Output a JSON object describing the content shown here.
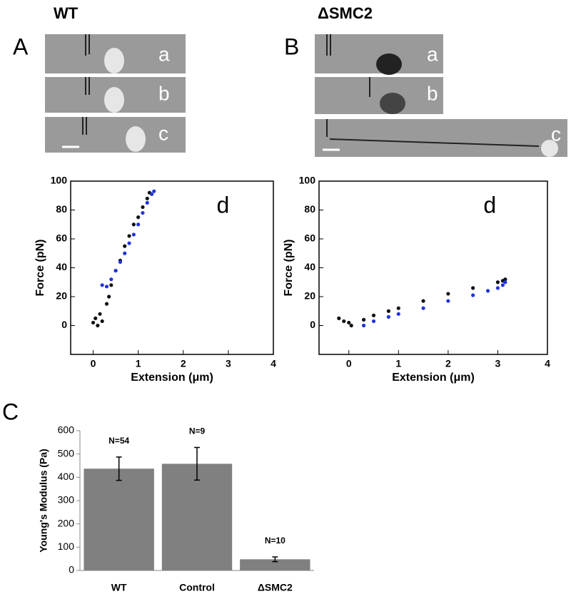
{
  "panels": {
    "left_title": "WT",
    "right_title": "ΔSMC2",
    "letters": [
      "A",
      "B",
      "C"
    ],
    "left_images": [
      "a",
      "b",
      "c"
    ],
    "right_images": [
      "a",
      "b",
      "c"
    ]
  },
  "chart_data": [
    {
      "type": "scatter",
      "annotation": "d",
      "xlabel": "Extension (μm)",
      "ylabel": "Force (pN)",
      "xlim": [
        -0.5,
        4
      ],
      "xticks": [
        0,
        1,
        2,
        3,
        4
      ],
      "ylim": [
        -20,
        100
      ],
      "yticks": [
        0,
        20,
        40,
        60,
        80,
        100
      ],
      "series": [
        {
          "color": "#111111",
          "x": [
            0,
            0.05,
            0.1,
            0.15,
            0.2,
            0.3,
            0.35,
            0.4,
            0.5,
            0.6,
            0.7,
            0.8,
            0.9,
            1.0,
            1.1,
            1.2,
            1.25
          ],
          "values": [
            2,
            5,
            0,
            8,
            3,
            15,
            20,
            28,
            38,
            45,
            55,
            62,
            70,
            75,
            82,
            88,
            92
          ]
        },
        {
          "color": "#2233dd",
          "x": [
            0.2,
            0.3,
            0.4,
            0.5,
            0.6,
            0.7,
            0.8,
            0.9,
            1.0,
            1.1,
            1.2,
            1.3,
            1.35
          ],
          "values": [
            28,
            27,
            32,
            38,
            44,
            50,
            57,
            63,
            70,
            78,
            85,
            91,
            93
          ]
        }
      ]
    },
    {
      "type": "scatter",
      "annotation": "d",
      "xlabel": "Extension (μm)",
      "ylabel": "Force (pN)",
      "xlim": [
        -0.6,
        4
      ],
      "xticks": [
        0,
        1,
        2,
        3,
        4
      ],
      "ylim": [
        -20,
        100
      ],
      "yticks": [
        0,
        20,
        40,
        60,
        80,
        100
      ],
      "series": [
        {
          "color": "#111111",
          "x": [
            -0.2,
            -0.1,
            0,
            0.05,
            0.3,
            0.5,
            0.8,
            1.0,
            1.5,
            2.0,
            2.5,
            3.0,
            3.1,
            3.15
          ],
          "values": [
            5,
            3,
            2,
            0,
            4,
            7,
            10,
            12,
            17,
            22,
            26,
            30,
            31,
            32
          ]
        },
        {
          "color": "#2233dd",
          "x": [
            0.3,
            0.5,
            0.8,
            1.0,
            1.5,
            2.0,
            2.5,
            2.8,
            3.0,
            3.1,
            3.15
          ],
          "values": [
            0,
            3,
            6,
            8,
            12,
            17,
            21,
            24,
            26,
            28,
            30
          ]
        }
      ]
    },
    {
      "type": "bar",
      "ylabel": "Young's Modulus (Pa)",
      "categories": [
        "WT",
        "Control",
        "ΔSMC2"
      ],
      "values": [
        437,
        458,
        48
      ],
      "errors": [
        50,
        70,
        10
      ],
      "annotations": [
        "N=54",
        "N=9",
        "N=10"
      ],
      "color": "#808080",
      "ylim": [
        0,
        600
      ],
      "yticks": [
        0,
        100,
        200,
        300,
        400,
        500,
        600
      ]
    }
  ]
}
